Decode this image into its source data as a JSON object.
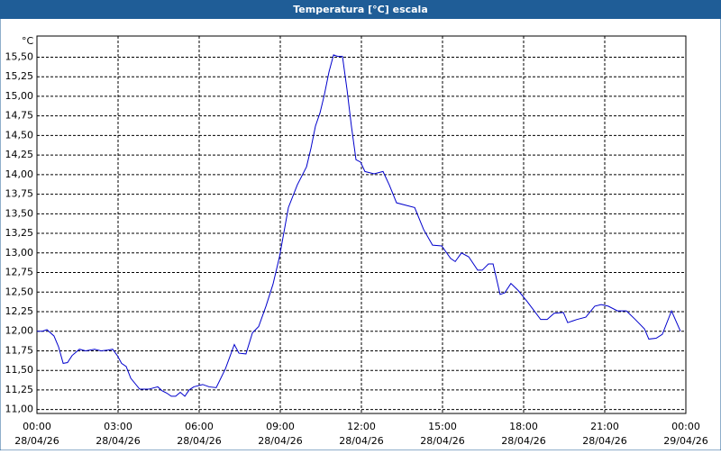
{
  "chart_data": {
    "type": "line",
    "title": "Temperatura [°C] escala",
    "y_unit": "°C",
    "x": [
      0,
      0.2,
      0.37,
      0.63,
      0.8,
      0.97,
      1.13,
      1.3,
      1.57,
      1.8,
      2.13,
      2.37,
      2.63,
      2.8,
      2.97,
      3.13,
      3.3,
      3.47,
      3.8,
      4.13,
      4.47,
      4.63,
      4.8,
      4.97,
      5.13,
      5.3,
      5.47,
      5.63,
      5.8,
      6.13,
      6.37,
      6.63,
      6.97,
      7.3,
      7.47,
      7.73,
      7.97,
      8.2,
      8.47,
      8.73,
      8.97,
      9.3,
      9.63,
      9.97,
      10.13,
      10.3,
      10.47,
      10.63,
      10.8,
      10.97,
      11.13,
      11.3,
      11.47,
      11.63,
      11.8,
      11.97,
      12.13,
      12.47,
      12.8,
      13.03,
      13.3,
      13.63,
      13.97,
      14.3,
      14.63,
      14.97,
      15.3,
      15.47,
      15.7,
      15.97,
      16.3,
      16.47,
      16.7,
      16.87,
      17.13,
      17.3,
      17.53,
      17.8,
      18.13,
      18.63,
      18.87,
      19.13,
      19.47,
      19.63,
      19.97,
      20.3,
      20.63,
      20.87,
      21.13,
      21.47,
      21.8,
      22.13,
      22.47,
      22.63,
      22.9,
      23.13,
      23.47,
      23.8
    ],
    "series": [
      {
        "name": "Temperatura",
        "color": "#0000cc",
        "values": [
          12.0,
          12.0,
          12.02,
          11.94,
          11.8,
          11.59,
          11.6,
          11.69,
          11.77,
          11.75,
          11.77,
          11.75,
          11.76,
          11.77,
          11.69,
          11.59,
          11.55,
          11.4,
          11.26,
          11.26,
          11.29,
          11.24,
          11.21,
          11.17,
          11.17,
          11.22,
          11.17,
          11.25,
          11.29,
          11.32,
          11.29,
          11.28,
          11.52,
          11.83,
          11.72,
          11.71,
          11.98,
          12.06,
          12.32,
          12.6,
          12.95,
          13.58,
          13.87,
          14.1,
          14.33,
          14.62,
          14.79,
          15.02,
          15.31,
          15.53,
          15.51,
          15.51,
          15.08,
          14.62,
          14.19,
          14.16,
          14.04,
          14.01,
          14.04,
          13.87,
          13.64,
          13.61,
          13.58,
          13.3,
          13.1,
          13.09,
          12.93,
          12.89,
          13.0,
          12.95,
          12.78,
          12.78,
          12.86,
          12.86,
          12.47,
          12.49,
          12.61,
          12.52,
          12.38,
          12.15,
          12.15,
          12.23,
          12.24,
          12.11,
          12.15,
          12.18,
          12.32,
          12.34,
          12.32,
          12.26,
          12.26,
          12.15,
          12.03,
          11.9,
          11.91,
          11.96,
          12.26,
          12.0
        ]
      }
    ],
    "xlim": [
      0,
      24
    ],
    "ylim": [
      10.95,
      15.77
    ],
    "xticks": [
      {
        "value": 0,
        "label": "00:00",
        "date": "28/04/26"
      },
      {
        "value": 3,
        "label": "03:00",
        "date": "28/04/26"
      },
      {
        "value": 6,
        "label": "06:00",
        "date": "28/04/26"
      },
      {
        "value": 9,
        "label": "09:00",
        "date": "28/04/26"
      },
      {
        "value": 12,
        "label": "12:00",
        "date": "28/04/26"
      },
      {
        "value": 15,
        "label": "15:00",
        "date": "28/04/26"
      },
      {
        "value": 18,
        "label": "18:00",
        "date": "28/04/26"
      },
      {
        "value": 21,
        "label": "21:00",
        "date": "28/04/26"
      },
      {
        "value": 24,
        "label": "00:00",
        "date": "29/04/26"
      }
    ],
    "yticks": [
      {
        "value": 11,
        "label": "11,00"
      },
      {
        "value": 11.25,
        "label": "11,25"
      },
      {
        "value": 11.5,
        "label": "11,50"
      },
      {
        "value": 11.75,
        "label": "11,75"
      },
      {
        "value": 12,
        "label": "12,00"
      },
      {
        "value": 12.25,
        "label": "12,25"
      },
      {
        "value": 12.5,
        "label": "12,50"
      },
      {
        "value": 12.75,
        "label": "12,75"
      },
      {
        "value": 13,
        "label": "13,00"
      },
      {
        "value": 13.25,
        "label": "13,25"
      },
      {
        "value": 13.5,
        "label": "13,50"
      },
      {
        "value": 13.75,
        "label": "13,75"
      },
      {
        "value": 14,
        "label": "14,00"
      },
      {
        "value": 14.25,
        "label": "14,25"
      },
      {
        "value": 14.5,
        "label": "14,50"
      },
      {
        "value": 14.75,
        "label": "14,75"
      },
      {
        "value": 15,
        "label": "15,00"
      },
      {
        "value": 15.25,
        "label": "15,25"
      },
      {
        "value": 15.5,
        "label": "15,50"
      }
    ],
    "grid": true
  }
}
